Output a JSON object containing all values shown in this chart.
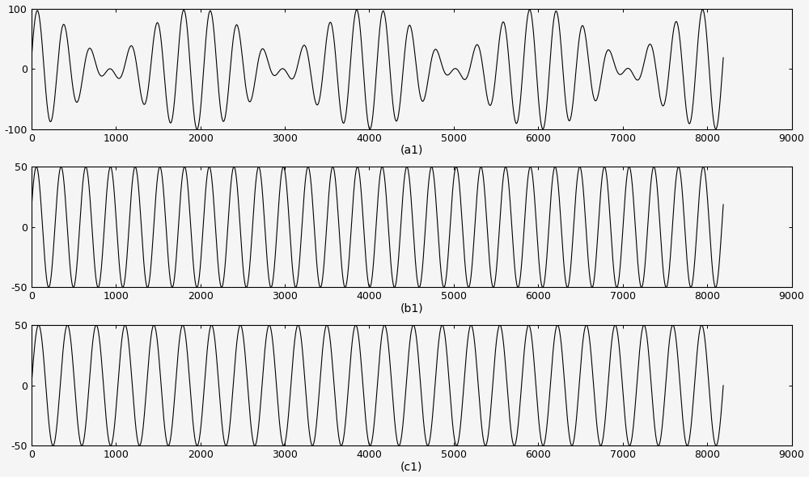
{
  "n_samples": 8192,
  "freq1": 0.00342,
  "freq2": 0.00293,
  "amp1": 50,
  "amp2": 50,
  "phase1": 0.3,
  "phase2": 0.0,
  "mix_a": 1.0,
  "mix_b": 1.0,
  "mix_c": 1.0,
  "mix_d": 1.0,
  "ylim_a1": [
    -100,
    100
  ],
  "ylim_b1": [
    -50,
    50
  ],
  "ylim_c1": [
    -50,
    50
  ],
  "yticks_a1": [
    -100,
    0,
    100
  ],
  "yticks_b1": [
    -50,
    0,
    50
  ],
  "yticks_c1": [
    -50,
    0,
    50
  ],
  "xlim": [
    0,
    9000
  ],
  "xticks": [
    0,
    1000,
    2000,
    3000,
    4000,
    5000,
    6000,
    7000,
    8000,
    9000
  ],
  "label_a1": "(a1)",
  "label_b1": "(b1)",
  "label_c1": "(c1)",
  "line_color": "#000000",
  "line_width": 0.8,
  "bg_color": "#f5f5f5",
  "label_fontsize": 10,
  "tick_fontsize": 9
}
